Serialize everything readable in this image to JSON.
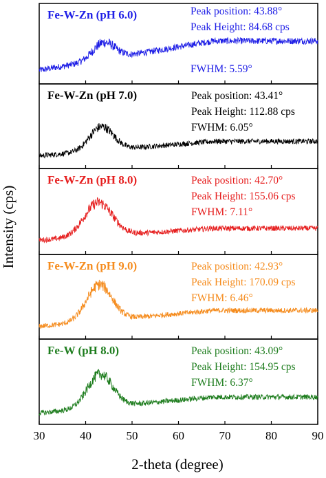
{
  "chart_data": {
    "type": "line",
    "xlabel": "2-theta (degree)",
    "ylabel": "Intensity (cps)",
    "xlim": [
      30,
      90
    ],
    "xticks": [
      30,
      40,
      50,
      60,
      70,
      80,
      90
    ],
    "series": [
      {
        "name": "Fe-W-Zn (pH 6.0)",
        "color": "#1e1ee6",
        "peak_position": 43.88,
        "peak_height": 84.68,
        "fwhm": 5.59,
        "baseline_start": 0.12,
        "baseline_end": 0.55,
        "noise": 0.08,
        "info": [
          "Peak position: 43.88°",
          "Peak Height: 84.68 cps",
          "FWHM: 5.59°"
        ]
      },
      {
        "name": "Fe-W-Zn (pH 7.0)",
        "color": "#000000",
        "peak_position": 43.41,
        "peak_height": 112.88,
        "fwhm": 6.05,
        "baseline_start": 0.1,
        "baseline_end": 0.3,
        "noise": 0.06,
        "info": [
          "Peak position: 43.41°",
          "Peak Height: 112.88 cps",
          "FWHM: 6.05°"
        ]
      },
      {
        "name": "Fe-W-Zn (pH 8.0)",
        "color": "#e61e1e",
        "peak_position": 42.7,
        "peak_height": 155.06,
        "fwhm": 7.11,
        "baseline_start": 0.12,
        "baseline_end": 0.28,
        "noise": 0.06,
        "info": [
          "Peak position: 42.70°",
          "Peak Height: 155.06 cps",
          "FWHM: 7.11°"
        ]
      },
      {
        "name": "Fe-W-Zn (pH 9.0)",
        "color": "#f58c1e",
        "peak_position": 42.93,
        "peak_height": 170.09,
        "fwhm": 6.46,
        "baseline_start": 0.1,
        "baseline_end": 0.32,
        "noise": 0.06,
        "info": [
          "Peak position: 42.93°",
          "Peak Height: 170.09 cps",
          "FWHM: 6.46°"
        ]
      },
      {
        "name": "Fe-W (pH 8.0)",
        "color": "#1e7d1e",
        "peak_position": 43.09,
        "peak_height": 154.95,
        "fwhm": 6.37,
        "baseline_start": 0.08,
        "baseline_end": 0.3,
        "noise": 0.06,
        "info": [
          "Peak position: 43.09°",
          "Peak Height: 154.95 cps",
          "FWHM: 6.37°"
        ]
      }
    ]
  }
}
